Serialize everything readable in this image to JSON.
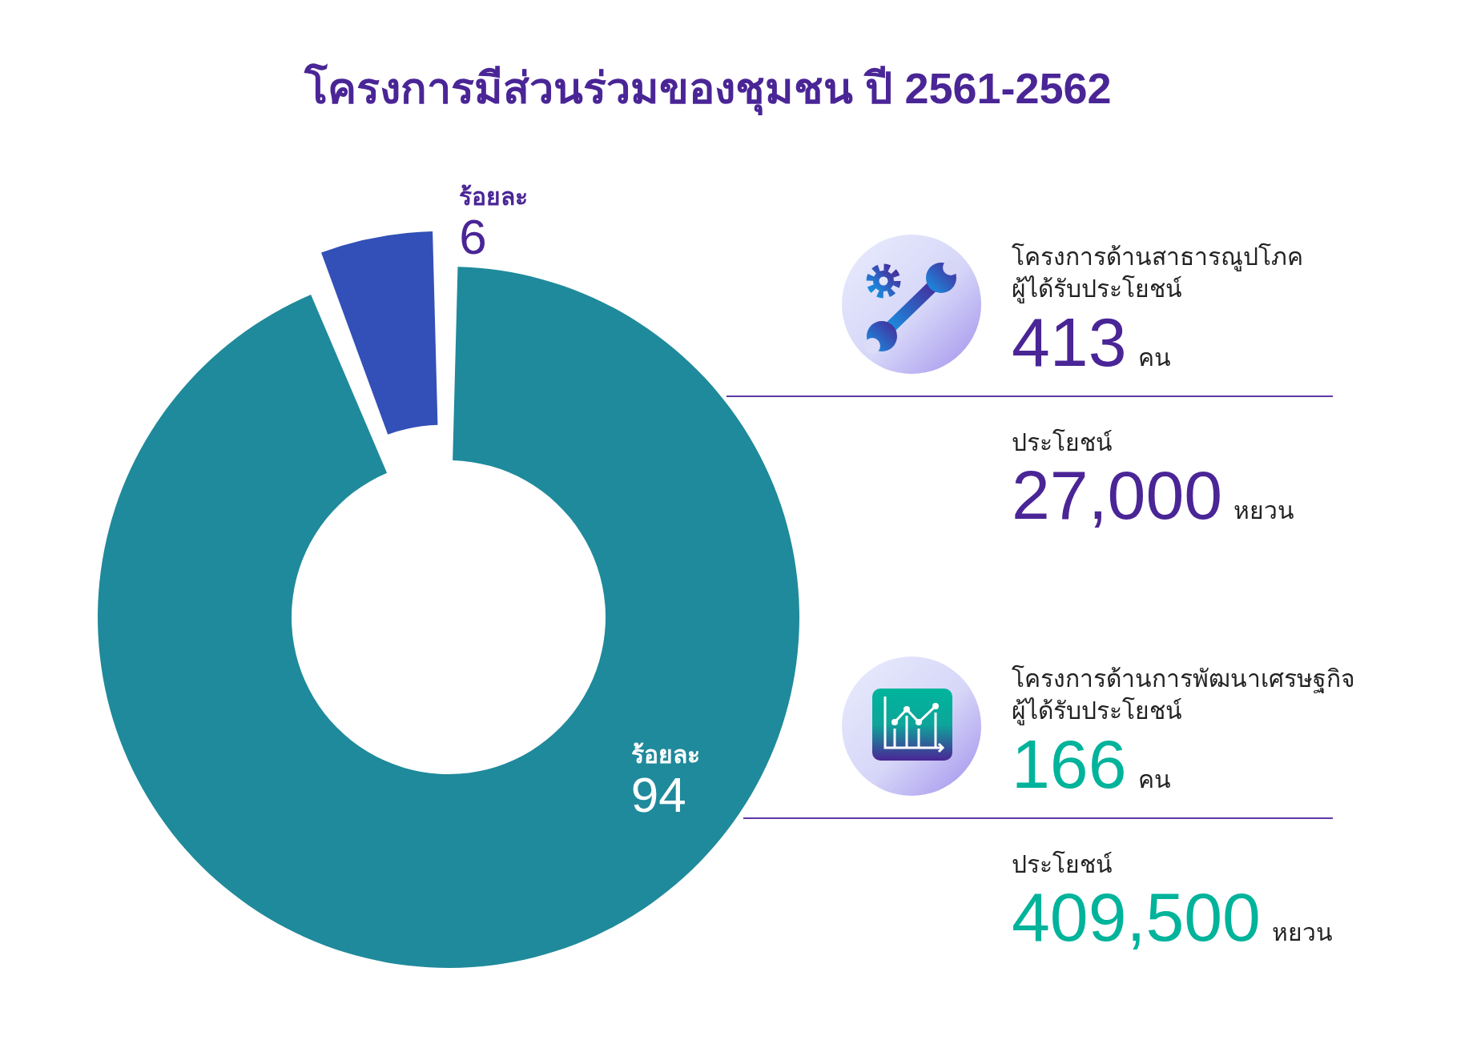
{
  "chart_data": {
    "type": "donut",
    "title": "โครงการมีส่วนร่วมของชุมชน ปี 2561-2562",
    "categories": [
      null,
      null
    ],
    "values": [
      94,
      6
    ],
    "colors": [
      "#1f8a9b",
      "#3350b8"
    ],
    "value_labels": [
      "ร้อยละ 94",
      "ร้อยละ 6"
    ],
    "annotations": [
      "โครงการด้านสาธารณูปโภค",
      "ผู้ได้รับประโยชน์",
      "413",
      "คน",
      "ประโยชน์",
      "27,000",
      "หยวน",
      "โครงการด้านการพัฒนาเศรษฐกิจ",
      "ผู้ได้รับประโยชน์",
      "166",
      "คน",
      "ประโยชน์",
      "409,500",
      "หยวน"
    ]
  }
}
